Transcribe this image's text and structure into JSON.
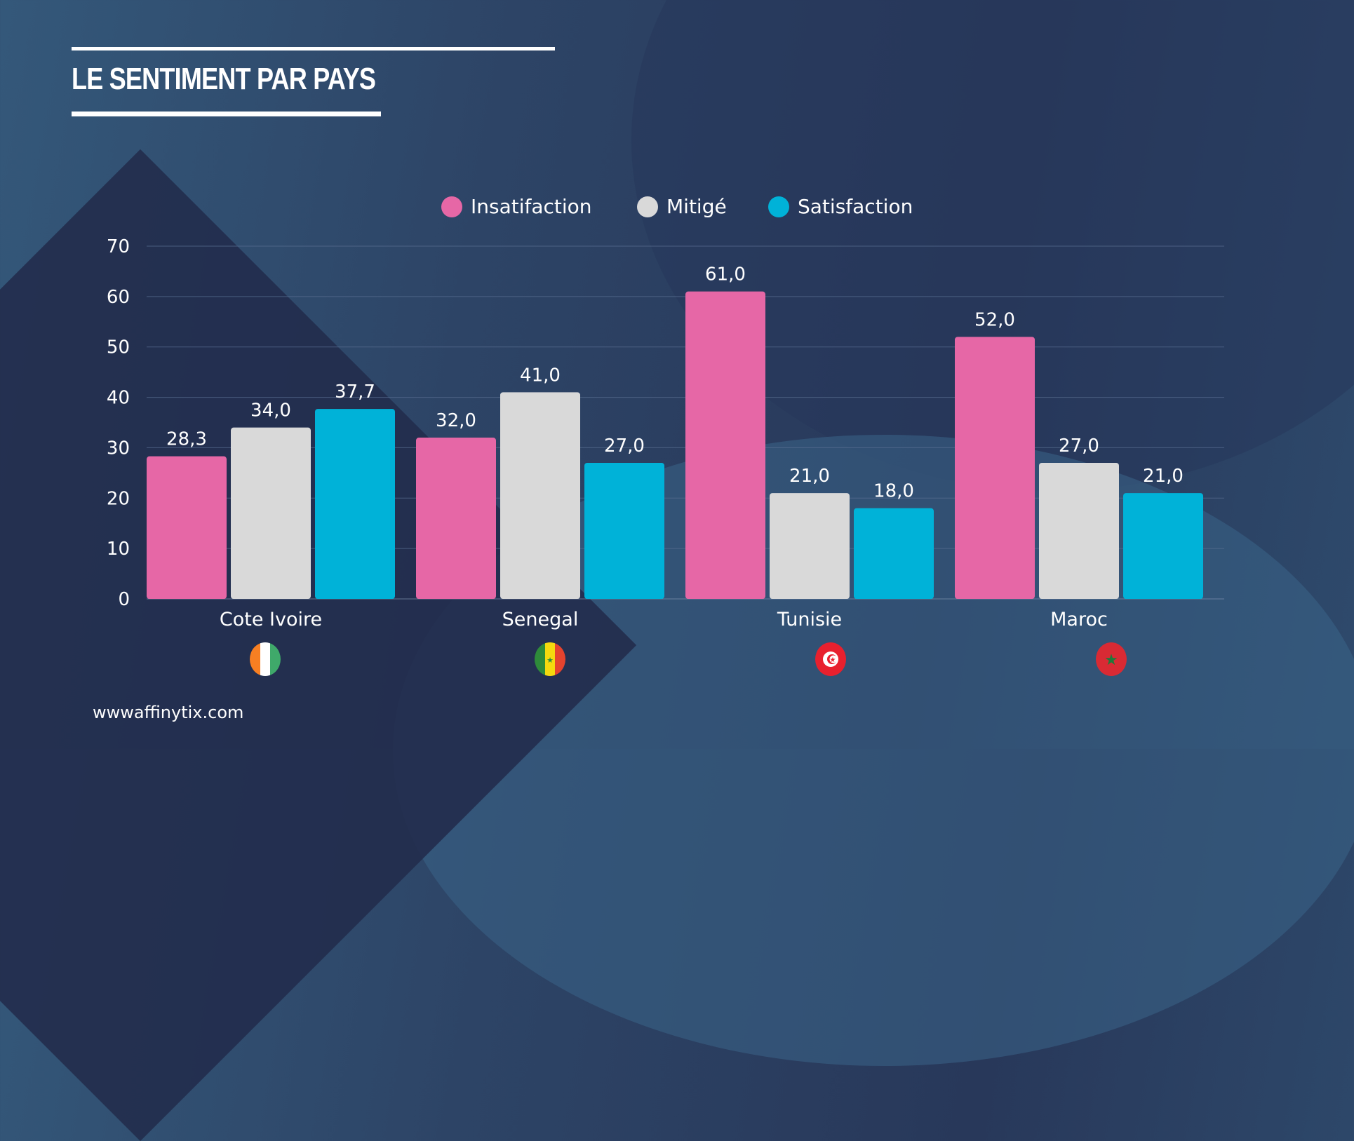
{
  "title": "LE SENTIMENT PAR PAYS",
  "website": "wwwaffinytix.com",
  "colors": {
    "insatisfaction": "#E667A6",
    "mitige": "#D9D9D9",
    "satisfaction": "#00B2D8"
  },
  "flags": [
    "cote-ivoire-flag-icon",
    "senegal-flag-icon",
    "tunisia-flag-icon",
    "morocco-flag-icon"
  ],
  "chart_data": {
    "type": "bar",
    "title": "LE SENTIMENT PAR PAYS",
    "categories": [
      "Cote Ivoire",
      "Senegal",
      "Tunisie",
      "Maroc"
    ],
    "series": [
      {
        "name": "Insatifaction",
        "color": "#E667A6",
        "values": [
          28.3,
          32.0,
          61.0,
          52.0
        ],
        "labels": [
          "28,3",
          "32,0",
          "61,0",
          "52,0"
        ]
      },
      {
        "name": "Mitigé",
        "color": "#D9D9D9",
        "values": [
          34.0,
          41.0,
          21.0,
          27.0
        ],
        "labels": [
          "34,0",
          "41,0",
          "21,0",
          "27,0"
        ]
      },
      {
        "name": "Satisfaction",
        "color": "#00B2D8",
        "values": [
          37.7,
          27.0,
          18.0,
          21.0
        ],
        "labels": [
          "37,7",
          "27,0",
          "18,0",
          "21,0"
        ]
      }
    ],
    "ylim": [
      0,
      70
    ],
    "yticks": [
      "0",
      "10",
      "20",
      "30",
      "40",
      "50",
      "60",
      "70"
    ],
    "grid": true,
    "legend": "top-center",
    "xlabel": "",
    "ylabel": ""
  }
}
